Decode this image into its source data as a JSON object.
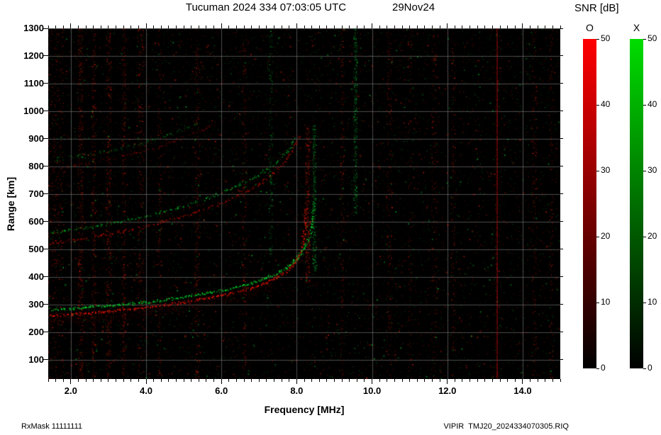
{
  "header": {
    "title": "Tucuman 2024 334 07:03:05 UTC",
    "date": "29Nov24"
  },
  "footer": {
    "left": "RxMask 11111111",
    "right": "VIPIR  TMJ20_2024334070305.RIQ"
  },
  "chart_data": {
    "type": "heatmap",
    "subtype": "ionogram",
    "title": "Tucuman 2024 334 07:03:05 UTC",
    "date_label": "29Nov24",
    "xlabel": "Frequency [MHz]",
    "ylabel": "Range [km]",
    "xlim": [
      1.4,
      15.0
    ],
    "ylim": [
      30,
      1300
    ],
    "xticks": [
      2,
      4,
      6,
      8,
      10,
      12,
      14
    ],
    "xtick_labels": [
      "2.0",
      "4.0",
      "6.0",
      "8.0",
      "10.0",
      "12.0",
      "14.0"
    ],
    "minor_xtick_step": 0.2,
    "yticks": [
      100,
      200,
      300,
      400,
      500,
      600,
      700,
      800,
      900,
      1000,
      1100,
      1200,
      1300
    ],
    "ytick_labels": [
      "100",
      "200",
      "300",
      "400",
      "500",
      "600",
      "700",
      "800",
      "900",
      "1000",
      "1100",
      "1200",
      "1300"
    ],
    "grid": {
      "on": true,
      "color": "#969696",
      "x_step_mhz": 2,
      "y_step_km": 100
    },
    "background": "#000000",
    "colorbars": {
      "title": "SNR [dB]",
      "range": [
        0,
        50
      ],
      "ticks": [
        0,
        10,
        20,
        30,
        40,
        50
      ],
      "bars": [
        {
          "label": "O",
          "top_color": "#ff0000",
          "bottom_color": "#000000"
        },
        {
          "label": "X",
          "top_color": "#00dd00",
          "bottom_color": "#000000"
        }
      ]
    },
    "noise": {
      "count": 15000,
      "red_fraction": 0.62,
      "max_alpha": 0.5
    },
    "traces": [
      {
        "name": "F-layer O-mode 1st hop",
        "mode": "O",
        "hop": 1,
        "color": "#ff1500",
        "alpha": 0.95,
        "jitter": 7,
        "keep": 0.85,
        "points": [
          [
            1.45,
            260
          ],
          [
            2.0,
            266
          ],
          [
            2.5,
            271
          ],
          [
            3.0,
            277
          ],
          [
            3.5,
            284
          ],
          [
            4.0,
            291
          ],
          [
            4.5,
            300
          ],
          [
            5.0,
            310
          ],
          [
            5.5,
            321
          ],
          [
            6.0,
            334
          ],
          [
            6.4,
            346
          ],
          [
            6.8,
            361
          ],
          [
            7.1,
            376
          ],
          [
            7.4,
            394
          ],
          [
            7.6,
            410
          ],
          [
            7.8,
            430
          ],
          [
            7.95,
            452
          ],
          [
            8.05,
            476
          ],
          [
            8.12,
            502
          ],
          [
            8.17,
            532
          ],
          [
            8.2,
            570
          ],
          [
            8.22,
            615
          ],
          [
            8.23,
            655
          ]
        ]
      },
      {
        "name": "F-layer X-mode 1st hop",
        "mode": "X",
        "hop": 1,
        "color": "#00ee30",
        "alpha": 0.95,
        "jitter": 7,
        "keep": 0.8,
        "points": [
          [
            1.45,
            282
          ],
          [
            2.0,
            287
          ],
          [
            2.5,
            292
          ],
          [
            3.0,
            297
          ],
          [
            3.5,
            303
          ],
          [
            4.0,
            310
          ],
          [
            4.5,
            318
          ],
          [
            5.0,
            328
          ],
          [
            5.5,
            339
          ],
          [
            6.0,
            352
          ],
          [
            6.5,
            368
          ],
          [
            7.0,
            388
          ],
          [
            7.3,
            404
          ],
          [
            7.6,
            424
          ],
          [
            7.8,
            444
          ],
          [
            8.0,
            468
          ],
          [
            8.15,
            494
          ],
          [
            8.25,
            522
          ],
          [
            8.33,
            556
          ],
          [
            8.39,
            598
          ],
          [
            8.43,
            640
          ],
          [
            8.45,
            668
          ]
        ]
      },
      {
        "name": "F-layer O-mode 2nd hop",
        "mode": "O",
        "hop": 2,
        "color": "#ff1500",
        "alpha": 0.6,
        "jitter": 8,
        "keep": 0.6,
        "points": [
          [
            1.45,
            522
          ],
          [
            2.0,
            534
          ],
          [
            2.5,
            544
          ],
          [
            3.0,
            556
          ],
          [
            3.5,
            570
          ],
          [
            4.0,
            584
          ],
          [
            4.5,
            602
          ],
          [
            5.0,
            622
          ],
          [
            5.5,
            644
          ],
          [
            6.0,
            670
          ],
          [
            6.4,
            694
          ],
          [
            6.8,
            722
          ],
          [
            7.1,
            748
          ],
          [
            7.4,
            780
          ],
          [
            7.6,
            808
          ],
          [
            7.8,
            844
          ],
          [
            7.95,
            880
          ],
          [
            8.05,
            912
          ]
        ]
      },
      {
        "name": "F-layer X-mode 2nd hop",
        "mode": "X",
        "hop": 2,
        "color": "#00ee30",
        "alpha": 0.6,
        "jitter": 8,
        "keep": 0.55,
        "points": [
          [
            1.45,
            562
          ],
          [
            2.0,
            572
          ],
          [
            2.5,
            582
          ],
          [
            3.0,
            594
          ],
          [
            3.5,
            608
          ],
          [
            4.0,
            622
          ],
          [
            4.5,
            638
          ],
          [
            5.0,
            658
          ],
          [
            5.5,
            680
          ],
          [
            6.0,
            706
          ],
          [
            6.5,
            736
          ],
          [
            7.0,
            772
          ],
          [
            7.3,
            800
          ],
          [
            7.6,
            836
          ],
          [
            7.8,
            868
          ],
          [
            7.95,
            900
          ]
        ]
      },
      {
        "name": "F-layer O-mode 3rd hop",
        "mode": "O",
        "hop": 3,
        "color": "#ff1500",
        "alpha": 0.42,
        "jitter": 8,
        "keep": 0.45,
        "points": [
          [
            1.45,
            790
          ],
          [
            2.0,
            802
          ],
          [
            2.5,
            812
          ],
          [
            3.0,
            826
          ],
          [
            3.5,
            842
          ],
          [
            4.0,
            860
          ],
          [
            4.5,
            882
          ],
          [
            5.0,
            908
          ],
          [
            5.5,
            936
          ],
          [
            5.9,
            960
          ]
        ]
      },
      {
        "name": "F-layer X-mode 3rd hop",
        "mode": "X",
        "hop": 3,
        "color": "#00ee30",
        "alpha": 0.35,
        "jitter": 8,
        "keep": 0.4,
        "points": [
          [
            1.45,
            824
          ],
          [
            2.0,
            836
          ],
          [
            2.5,
            846
          ],
          [
            3.0,
            858
          ],
          [
            3.5,
            872
          ],
          [
            4.0,
            890
          ],
          [
            4.5,
            912
          ],
          [
            5.0,
            936
          ],
          [
            5.4,
            958
          ]
        ]
      }
    ],
    "rfi_columns": [
      {
        "f": 1.55,
        "width": 0.5,
        "color": "#ff2200",
        "intensity": 0.5,
        "km": [
          30,
          1300
        ]
      },
      {
        "f": 2.25,
        "width": 0.14,
        "color": "#ff2200",
        "intensity": 0.4,
        "km": [
          30,
          1300
        ]
      },
      {
        "f": 2.6,
        "width": 0.1,
        "color": "#ff2200",
        "intensity": 0.3,
        "km": [
          30,
          1300
        ]
      },
      {
        "f": 3.0,
        "width": 0.14,
        "color": "#ff2200",
        "intensity": 0.35,
        "km": [
          30,
          1300
        ]
      },
      {
        "f": 3.4,
        "width": 0.1,
        "color": "#ff2200",
        "intensity": 0.28,
        "km": [
          30,
          1300
        ]
      },
      {
        "f": 3.85,
        "width": 0.16,
        "color": "#ff2200",
        "intensity": 0.22,
        "km": [
          30,
          1300
        ]
      },
      {
        "f": 4.35,
        "width": 0.1,
        "color": "#ff2200",
        "intensity": 0.15,
        "km": [
          30,
          1300
        ]
      },
      {
        "f": 5.35,
        "width": 0.14,
        "color": "#ff2200",
        "intensity": 0.2,
        "km": [
          30,
          1300
        ]
      },
      {
        "f": 6.6,
        "width": 0.12,
        "color": "#ff2200",
        "intensity": 0.18,
        "km": [
          30,
          1300
        ]
      },
      {
        "f": 7.3,
        "width": 0.1,
        "color": "#00e040",
        "intensity": 0.15,
        "km": [
          450,
          1300
        ]
      },
      {
        "f": 8.28,
        "width": 0.12,
        "color": "#ff2200",
        "intensity": 0.3,
        "km": [
          380,
          950
        ]
      },
      {
        "f": 8.46,
        "width": 0.09,
        "color": "#00e040",
        "intensity": 0.25,
        "km": [
          420,
          950
        ]
      },
      {
        "f": 9.2,
        "width": 0.09,
        "color": "#ff2200",
        "intensity": 0.15,
        "km": [
          30,
          1300
        ]
      },
      {
        "f": 9.55,
        "width": 0.1,
        "color": "#00e040",
        "intensity": 0.3,
        "km": [
          620,
          1300
        ]
      },
      {
        "f": 10.45,
        "width": 0.14,
        "color": "#ff2200",
        "intensity": 0.18,
        "km": [
          30,
          1300
        ]
      },
      {
        "f": 11.0,
        "width": 0.1,
        "color": "#ff2200",
        "intensity": 0.1,
        "km": [
          30,
          1300
        ]
      },
      {
        "f": 11.65,
        "width": 0.14,
        "color": "#ff2200",
        "intensity": 0.16,
        "km": [
          30,
          1300
        ]
      },
      {
        "f": 12.15,
        "width": 0.1,
        "color": "#ff2200",
        "intensity": 0.13,
        "km": [
          30,
          1300
        ]
      },
      {
        "f": 14.3,
        "width": 0.14,
        "color": "#ff2200",
        "intensity": 0.18,
        "km": [
          30,
          1300
        ]
      },
      {
        "f": 14.75,
        "width": 0.1,
        "color": "#ff2200",
        "intensity": 0.14,
        "km": [
          30,
          1300
        ]
      }
    ],
    "interference_line": {
      "f": 13.3,
      "color": "#aa0a0a"
    }
  }
}
